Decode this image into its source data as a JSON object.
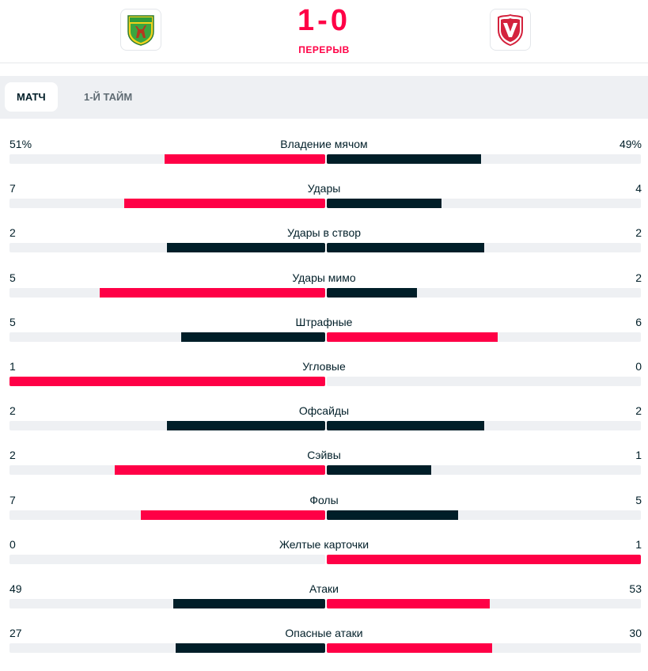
{
  "header": {
    "home_team_logo": "Neman shield logo (green/yellow with deer)",
    "away_team_logo": "Vaduz shield logo (red/white V)",
    "score_home": "1",
    "score_separator": "-",
    "score_away": "0",
    "status": "ПЕРЕРЫВ"
  },
  "tabs": [
    {
      "label": "МАТЧ",
      "active": true
    },
    {
      "label": "1-Й ТАЙМ",
      "active": false
    }
  ],
  "colors": {
    "accent": "#ff0046",
    "dark": "#001e28",
    "track": "#eef0f3"
  },
  "stats": [
    {
      "label": "Владение мячом",
      "home": "51%",
      "away": "49%",
      "home_share": 0.51,
      "away_share": 0.49,
      "leader": "home"
    },
    {
      "label": "Удары",
      "home": "7",
      "away": "4",
      "home_share": 0.636,
      "away_share": 0.364,
      "leader": "home"
    },
    {
      "label": "Удары в створ",
      "home": "2",
      "away": "2",
      "home_share": 0.5,
      "away_share": 0.5,
      "leader": "none"
    },
    {
      "label": "Удары мимо",
      "home": "5",
      "away": "2",
      "home_share": 0.714,
      "away_share": 0.286,
      "leader": "home"
    },
    {
      "label": "Штрафные",
      "home": "5",
      "away": "6",
      "home_share": 0.455,
      "away_share": 0.545,
      "leader": "away"
    },
    {
      "label": "Угловые",
      "home": "1",
      "away": "0",
      "home_share": 1.0,
      "away_share": 0.0,
      "leader": "home"
    },
    {
      "label": "Офсайды",
      "home": "2",
      "away": "2",
      "home_share": 0.5,
      "away_share": 0.5,
      "leader": "none"
    },
    {
      "label": "Сэйвы",
      "home": "2",
      "away": "1",
      "home_share": 0.667,
      "away_share": 0.333,
      "leader": "home"
    },
    {
      "label": "Фолы",
      "home": "7",
      "away": "5",
      "home_share": 0.583,
      "away_share": 0.417,
      "leader": "home"
    },
    {
      "label": "Желтые карточки",
      "home": "0",
      "away": "1",
      "home_share": 0.0,
      "away_share": 1.0,
      "leader": "away"
    },
    {
      "label": "Атаки",
      "home": "49",
      "away": "53",
      "home_share": 0.48,
      "away_share": 0.52,
      "leader": "away"
    },
    {
      "label": "Опасные атаки",
      "home": "27",
      "away": "30",
      "home_share": 0.474,
      "away_share": 0.526,
      "leader": "away"
    }
  ]
}
